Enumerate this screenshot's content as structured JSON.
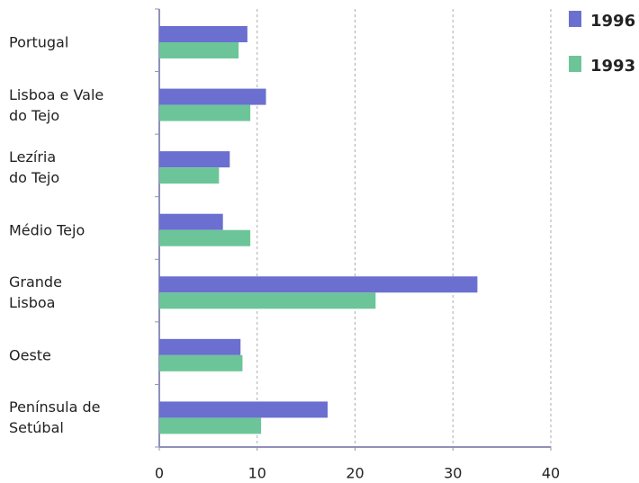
{
  "chart_data": {
    "type": "hbar",
    "categories": [
      "Portugal",
      "Lisboa e Vale\ndo Tejo",
      "Lezíria\ndo Tejo",
      "Médio Tejo",
      "Grande\nLisboa",
      "Oeste",
      "Península de\nSetúbal"
    ],
    "series": [
      {
        "name": "1996",
        "color": "#6b6fd0",
        "values": [
          9.0,
          10.9,
          7.2,
          6.5,
          32.5,
          8.3,
          17.2
        ]
      },
      {
        "name": "1993",
        "color": "#6cc598",
        "values": [
          8.1,
          9.3,
          6.1,
          9.3,
          22.1,
          8.5,
          10.4
        ]
      }
    ],
    "xlim": [
      0,
      40
    ],
    "xticks": [
      0,
      10,
      20,
      30,
      40
    ],
    "grid": true,
    "legend": "top-right"
  }
}
